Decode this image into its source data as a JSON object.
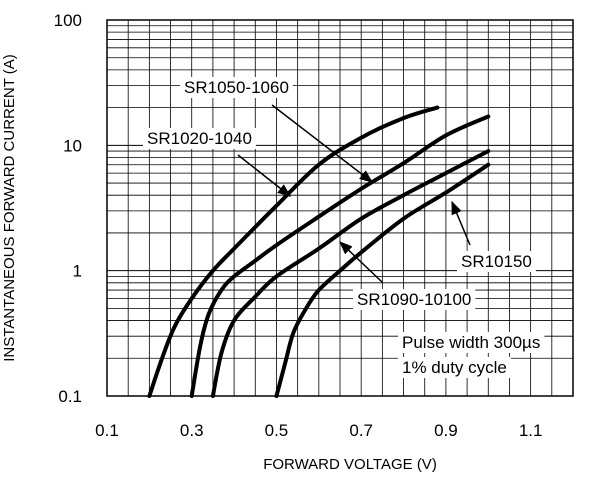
{
  "chart_data": {
    "type": "line",
    "title": "",
    "xlabel": "FORWARD VOLTAGE (V)",
    "ylabel": "INSTANTANEOUS FORWARD CURRENT (A)",
    "xlim": [
      0.1,
      1.2
    ],
    "ylim": [
      0.1,
      100
    ],
    "yscale": "log",
    "grid": true,
    "x_ticks": [
      "0.1",
      "0.3",
      "0.5",
      "0.7",
      "0.9",
      "1.1"
    ],
    "y_ticks": [
      "0.1",
      "1",
      "10",
      "100"
    ],
    "series": [
      {
        "name": "SR1020-1040",
        "x": [
          0.2,
          0.23,
          0.26,
          0.3,
          0.35,
          0.4,
          0.5,
          0.6,
          0.7,
          0.8,
          0.88
        ],
        "y": [
          0.1,
          0.2,
          0.36,
          0.6,
          1.0,
          1.5,
          3.3,
          7.0,
          11.5,
          16.5,
          20
        ]
      },
      {
        "name": "SR1050-1060",
        "x": [
          0.3,
          0.32,
          0.34,
          0.37,
          0.4,
          0.45,
          0.5,
          0.6,
          0.7,
          0.8,
          0.9,
          1.0
        ],
        "y": [
          0.1,
          0.25,
          0.45,
          0.7,
          0.9,
          1.2,
          1.6,
          2.7,
          4.5,
          7.2,
          12,
          17
        ]
      },
      {
        "name": "SR1090-10100",
        "x": [
          0.35,
          0.37,
          0.4,
          0.45,
          0.5,
          0.6,
          0.7,
          0.8,
          0.9,
          1.0
        ],
        "y": [
          0.1,
          0.22,
          0.4,
          0.62,
          0.9,
          1.5,
          2.6,
          4.0,
          6.0,
          9.0
        ]
      },
      {
        "name": "SR10150",
        "x": [
          0.5,
          0.52,
          0.54,
          0.57,
          0.6,
          0.65,
          0.7,
          0.8,
          0.9,
          1.0
        ],
        "y": [
          0.1,
          0.18,
          0.32,
          0.5,
          0.7,
          1.0,
          1.4,
          2.6,
          4.2,
          7.0
        ]
      }
    ],
    "annotations": [
      {
        "text": "SR1050-1060"
      },
      {
        "text": "SR1020-1040"
      },
      {
        "text": "SR10150"
      },
      {
        "text": "SR1090-10100"
      },
      {
        "text": "Pulse width 300µs"
      },
      {
        "text": "1% duty cycle"
      }
    ]
  }
}
